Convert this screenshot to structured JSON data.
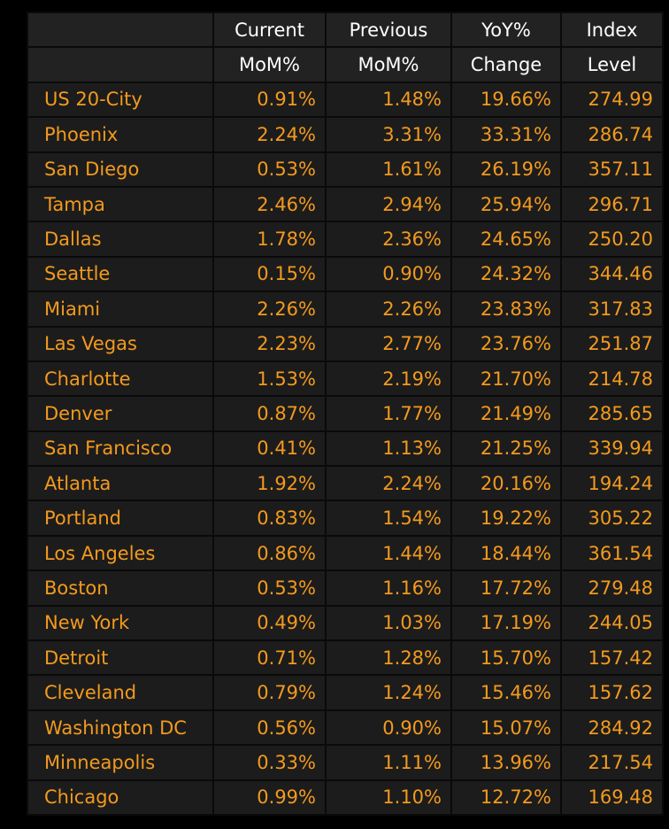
{
  "headers": [
    {
      "line1": "",
      "line2": ""
    },
    {
      "line1": "Current",
      "line2": "MoM%"
    },
    {
      "line1": "Previous",
      "line2": "MoM%"
    },
    {
      "line1": "YoY%",
      "line2": "Change"
    },
    {
      "line1": "Index",
      "line2": "Level"
    }
  ],
  "rows": [
    [
      "US 20-City",
      "0.91%",
      "1.48%",
      "19.66%",
      "274.99"
    ],
    [
      "Phoenix",
      "2.24%",
      "3.31%",
      "33.31%",
      "286.74"
    ],
    [
      "San Diego",
      "0.53%",
      "1.61%",
      "26.19%",
      "357.11"
    ],
    [
      "Tampa",
      "2.46%",
      "2.94%",
      "25.94%",
      "296.71"
    ],
    [
      "Dallas",
      "1.78%",
      "2.36%",
      "24.65%",
      "250.20"
    ],
    [
      "Seattle",
      "0.15%",
      "0.90%",
      "24.32%",
      "344.46"
    ],
    [
      "Miami",
      "2.26%",
      "2.26%",
      "23.83%",
      "317.83"
    ],
    [
      "Las Vegas",
      "2.23%",
      "2.77%",
      "23.76%",
      "251.87"
    ],
    [
      "Charlotte",
      "1.53%",
      "2.19%",
      "21.70%",
      "214.78"
    ],
    [
      "Denver",
      "0.87%",
      "1.77%",
      "21.49%",
      "285.65"
    ],
    [
      "San Francisco",
      "0.41%",
      "1.13%",
      "21.25%",
      "339.94"
    ],
    [
      "Atlanta",
      "1.92%",
      "2.24%",
      "20.16%",
      "194.24"
    ],
    [
      "Portland",
      "0.83%",
      "1.54%",
      "19.22%",
      "305.22"
    ],
    [
      "Los Angeles",
      "0.86%",
      "1.44%",
      "18.44%",
      "361.54"
    ],
    [
      "Boston",
      "0.53%",
      "1.16%",
      "17.72%",
      "279.48"
    ],
    [
      "New York",
      "0.49%",
      "1.03%",
      "17.19%",
      "244.05"
    ],
    [
      "Detroit",
      "0.71%",
      "1.28%",
      "15.70%",
      "157.42"
    ],
    [
      "Cleveland",
      "0.79%",
      "1.24%",
      "15.46%",
      "157.62"
    ],
    [
      "Washington DC",
      "0.56%",
      "0.90%",
      "15.07%",
      "284.92"
    ],
    [
      "Minneapolis",
      "0.33%",
      "1.11%",
      "13.96%",
      "217.54"
    ],
    [
      "Chicago",
      "0.99%",
      "1.10%",
      "12.72%",
      "169.48"
    ]
  ],
  "colors": {
    "text_orange": "#f39a1e",
    "header_text": "#ffffff",
    "cell_bg": "#1c1c1c",
    "header_bg": "#222222"
  }
}
